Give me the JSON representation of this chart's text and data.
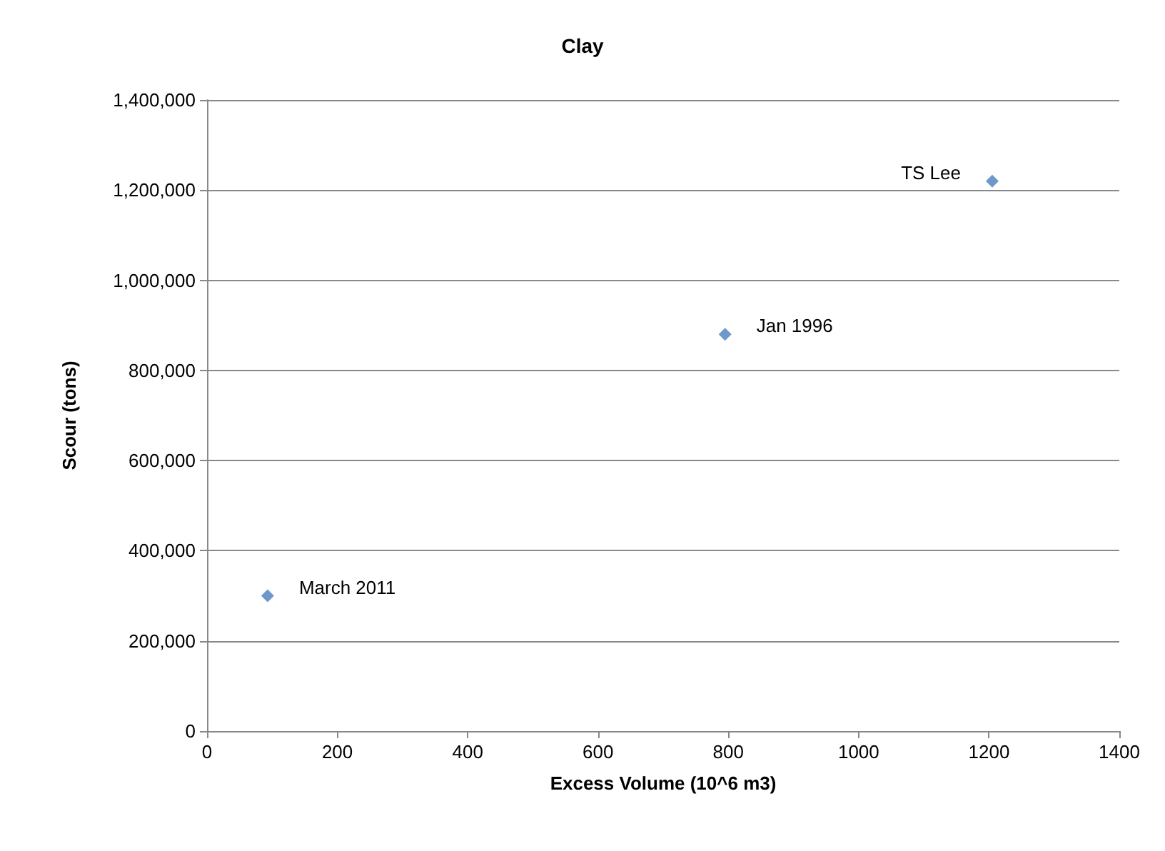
{
  "chart_data": {
    "type": "scatter",
    "title": "Clay",
    "xlabel": "Excess Volume (10^6 m3)",
    "ylabel": "Scour (tons)",
    "x": [
      93,
      795,
      1205
    ],
    "series": [
      {
        "color": "#4a7ebb",
        "values": [
          300000,
          880000,
          1220000
        ]
      }
    ],
    "xlim": [
      0,
      1400
    ],
    "xticks": [
      0,
      200,
      400,
      600,
      800,
      1000,
      1200,
      1400
    ],
    "ylim": [
      0,
      1400000
    ],
    "yticks": [
      0,
      {
        "value": 200000,
        "label": "200,000"
      },
      {
        "value": 400000,
        "label": "400,000"
      },
      {
        "value": 600000,
        "label": "600,000"
      },
      {
        "value": 800000,
        "label": "800,000"
      },
      {
        "value": 1000000,
        "label": "1,000,000"
      },
      {
        "value": 1200000,
        "label": "1,200,000"
      },
      {
        "value": 1400000,
        "label": "1,400,000"
      }
    ],
    "grid": "y",
    "marker": "diamond",
    "annotations": [
      {
        "text": "March 2011",
        "x": 93,
        "y": 300000
      },
      {
        "text": "Jan 1996",
        "x": 795,
        "y": 880000
      },
      {
        "text": "TS Lee",
        "x": 1205,
        "y": 1220000
      }
    ]
  }
}
